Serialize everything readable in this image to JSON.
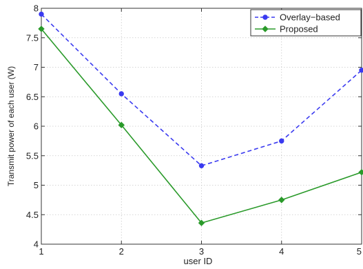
{
  "chart_data": {
    "type": "line",
    "title": "",
    "xlabel": "user ID",
    "ylabel": "Transmit power of each user (W)",
    "x": [
      1,
      2,
      3,
      4,
      5
    ],
    "xticks": [
      "1",
      "2",
      "3",
      "4",
      "5"
    ],
    "yticks": [
      "4",
      "4.5",
      "5",
      "5.5",
      "6",
      "6.5",
      "7",
      "7.5",
      "8"
    ],
    "xlim": [
      1,
      5
    ],
    "ylim": [
      4,
      8
    ],
    "grid": true,
    "legend_position": "top-right",
    "series": [
      {
        "name": "Overlay−based",
        "values": [
          7.9,
          6.55,
          5.33,
          5.75,
          6.95
        ],
        "color": "#3a3af0",
        "line_style": "dashed",
        "marker": "circle"
      },
      {
        "name": "Proposed",
        "values": [
          7.65,
          6.02,
          4.36,
          4.75,
          5.22
        ],
        "color": "#2a9a2a",
        "line_style": "solid",
        "marker": "diamond"
      }
    ]
  }
}
